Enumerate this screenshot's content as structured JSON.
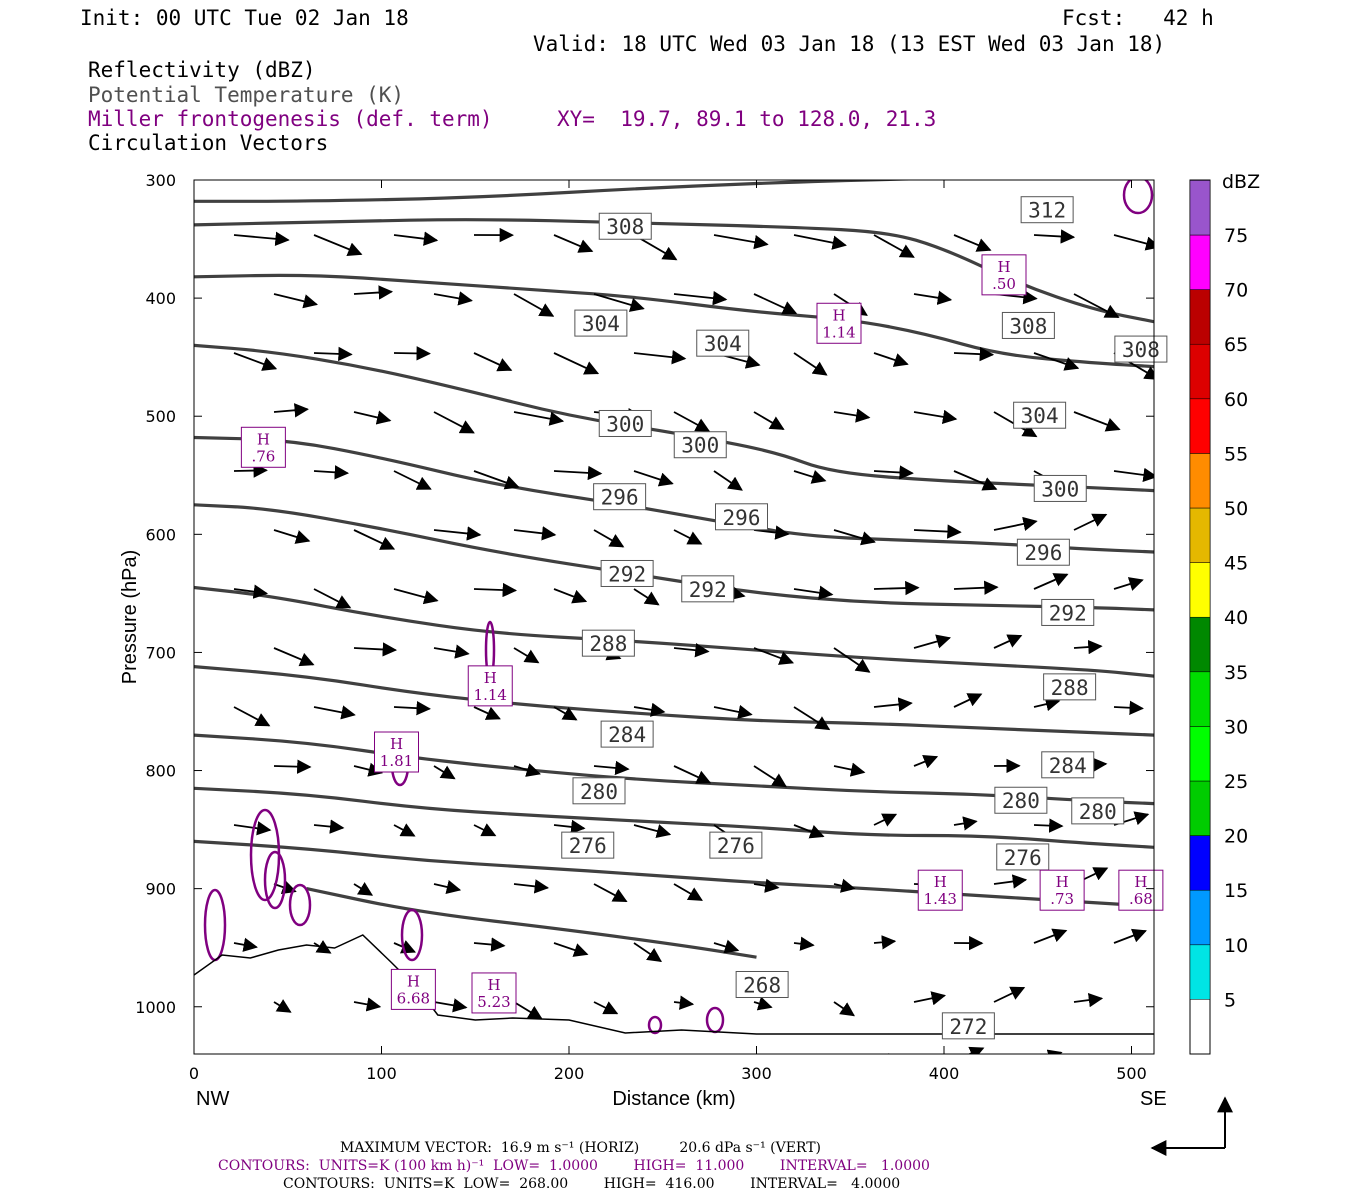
{
  "header": {
    "init": "Init: 00 UTC Tue 02 Jan 18",
    "fcst": "Fcst:   42 h",
    "valid": "Valid: 18 UTC Wed 03 Jan 18 (13 EST Wed 03 Jan 18)",
    "field1": "Reflectivity (dBZ)",
    "field2": "Potential Temperature (K)",
    "field3": "Miller frontogenesis (def. term)",
    "xy": "XY=  19.7, 89.1 to 128.0, 21.3",
    "field4": "Circulation Vectors"
  },
  "colors": {
    "theta": "#404040",
    "fronto": "#800080",
    "terrain": "#000000",
    "vectors": "#000000"
  },
  "chart_data": {
    "type": "cross-section",
    "xlabel": "Distance (km)",
    "ylabel": "Pressure (hPa)",
    "xlim": [
      0,
      512
    ],
    "ylim": [
      1040,
      300
    ],
    "x_ticks": [
      0,
      100,
      200,
      300,
      400,
      500
    ],
    "y_ticks": [
      300,
      400,
      500,
      600,
      700,
      800,
      900,
      1000
    ],
    "left_end": "NW",
    "right_end": "SE",
    "theta_contours": [
      {
        "label": "312",
        "points": [
          [
            0,
            318
          ],
          [
            60,
            318
          ],
          [
            150,
            315
          ],
          [
            250,
            306
          ],
          [
            350,
            300
          ],
          [
            420,
            298
          ],
          [
            512,
            296
          ]
        ],
        "labels": [
          [
            455,
            326
          ]
        ]
      },
      {
        "label": "308",
        "points": [
          [
            0,
            338
          ],
          [
            80,
            335
          ],
          [
            150,
            333
          ],
          [
            230,
            336
          ],
          [
            320,
            340
          ],
          [
            370,
            344
          ],
          [
            400,
            358
          ],
          [
            440,
            388
          ],
          [
            480,
            410
          ],
          [
            512,
            420
          ]
        ],
        "labels": [
          [
            230,
            340
          ],
          [
            445,
            424
          ],
          [
            505,
            444
          ]
        ]
      },
      {
        "label": "304",
        "points": [
          [
            0,
            382
          ],
          [
            60,
            380
          ],
          [
            120,
            386
          ],
          [
            180,
            393
          ],
          [
            230,
            398
          ],
          [
            300,
            412
          ],
          [
            350,
            418
          ],
          [
            390,
            430
          ],
          [
            430,
            448
          ],
          [
            480,
            455
          ],
          [
            512,
            458
          ]
        ],
        "labels": [
          [
            217,
            422
          ],
          [
            282,
            439
          ],
          [
            451,
            500
          ]
        ]
      },
      {
        "label": "300",
        "points": [
          [
            0,
            440
          ],
          [
            40,
            445
          ],
          [
            90,
            458
          ],
          [
            140,
            476
          ],
          [
            200,
            500
          ],
          [
            260,
            515
          ],
          [
            310,
            530
          ],
          [
            340,
            548
          ],
          [
            400,
            555
          ],
          [
            460,
            559
          ],
          [
            512,
            563
          ]
        ],
        "labels": [
          [
            230,
            507
          ],
          [
            270,
            525
          ],
          [
            462,
            562
          ]
        ]
      },
      {
        "label": "296",
        "points": [
          [
            0,
            518
          ],
          [
            50,
            520
          ],
          [
            100,
            535
          ],
          [
            160,
            558
          ],
          [
            230,
            575
          ],
          [
            290,
            592
          ],
          [
            330,
            602
          ],
          [
            380,
            605
          ],
          [
            430,
            608
          ],
          [
            470,
            612
          ],
          [
            512,
            615
          ]
        ],
        "labels": [
          [
            227,
            569
          ],
          [
            292,
            586
          ],
          [
            453,
            616
          ]
        ]
      },
      {
        "label": "292",
        "points": [
          [
            0,
            575
          ],
          [
            40,
            578
          ],
          [
            100,
            595
          ],
          [
            160,
            615
          ],
          [
            240,
            635
          ],
          [
            300,
            650
          ],
          [
            360,
            658
          ],
          [
            420,
            660
          ],
          [
            480,
            662
          ],
          [
            512,
            664
          ]
        ],
        "labels": [
          [
            231,
            634
          ],
          [
            274,
            647
          ],
          [
            466,
            667
          ]
        ]
      },
      {
        "label": "288",
        "points": [
          [
            0,
            645
          ],
          [
            40,
            652
          ],
          [
            100,
            670
          ],
          [
            160,
            684
          ],
          [
            230,
            690
          ],
          [
            300,
            698
          ],
          [
            360,
            705
          ],
          [
            420,
            710
          ],
          [
            480,
            715
          ],
          [
            512,
            720
          ]
        ],
        "labels": [
          [
            221,
            693
          ],
          [
            467,
            730
          ]
        ]
      },
      {
        "label": "284",
        "points": [
          [
            0,
            712
          ],
          [
            60,
            720
          ],
          [
            120,
            735
          ],
          [
            180,
            745
          ],
          [
            240,
            752
          ],
          [
            300,
            758
          ],
          [
            360,
            760
          ],
          [
            420,
            764
          ],
          [
            480,
            768
          ],
          [
            512,
            770
          ]
        ],
        "labels": [
          [
            231,
            770
          ],
          [
            466,
            796
          ]
        ]
      },
      {
        "label": "280",
        "points": [
          [
            0,
            770
          ],
          [
            60,
            776
          ],
          [
            120,
            790
          ],
          [
            180,
            800
          ],
          [
            240,
            808
          ],
          [
            300,
            813
          ],
          [
            360,
            818
          ],
          [
            420,
            820
          ],
          [
            480,
            826
          ],
          [
            512,
            828
          ]
        ],
        "labels": [
          [
            216,
            818
          ],
          [
            441,
            826
          ],
          [
            482,
            835
          ]
        ]
      },
      {
        "label": "276",
        "points": [
          [
            0,
            815
          ],
          [
            60,
            820
          ],
          [
            120,
            832
          ],
          [
            180,
            838
          ],
          [
            240,
            843
          ],
          [
            300,
            848
          ],
          [
            360,
            855
          ],
          [
            420,
            855
          ],
          [
            480,
            862
          ],
          [
            512,
            865
          ]
        ],
        "labels": [
          [
            210,
            864
          ],
          [
            289,
            864
          ],
          [
            442,
            874
          ]
        ]
      },
      {
        "label": "272",
        "points": [
          [
            0,
            860
          ],
          [
            60,
            866
          ],
          [
            120,
            876
          ],
          [
            180,
            882
          ],
          [
            240,
            888
          ],
          [
            300,
            895
          ],
          [
            360,
            900
          ],
          [
            410,
            905
          ],
          [
            460,
            910
          ],
          [
            512,
            915
          ]
        ],
        "labels": [
          [
            413,
            1017
          ]
        ]
      },
      {
        "label": "268",
        "points": [
          [
            60,
            900
          ],
          [
            120,
            920
          ],
          [
            200,
            935
          ],
          [
            260,
            948
          ],
          [
            300,
            958
          ]
        ],
        "labels": [
          [
            303,
            982
          ]
        ]
      }
    ],
    "fronto_maxima": [
      {
        "x": 37,
        "p": 528,
        "value": ".76"
      },
      {
        "x": 158,
        "p": 730,
        "value": "1.14"
      },
      {
        "x": 108,
        "p": 786,
        "value": "1.81"
      },
      {
        "x": 344,
        "p": 423,
        "value": "1.14"
      },
      {
        "x": 432,
        "p": 382,
        "value": ".50"
      },
      {
        "x": 398,
        "p": 903,
        "value": "1.43"
      },
      {
        "x": 463,
        "p": 903,
        "value": ".73"
      },
      {
        "x": 505,
        "p": 903,
        "value": ".68"
      },
      {
        "x": 117,
        "p": 987,
        "value": "6.68"
      },
      {
        "x": 160,
        "p": 990,
        "value": "5.23"
      }
    ],
    "colorbar": {
      "title": "dBZ",
      "labels": [
        "5",
        "10",
        "15",
        "20",
        "25",
        "30",
        "35",
        "40",
        "45",
        "50",
        "55",
        "60",
        "65",
        "70",
        "75"
      ],
      "colors": [
        "#00e5e5",
        "#0099ff",
        "#0000ff",
        "#00cc00",
        "#00ff00",
        "#00dd00",
        "#008800",
        "#ffff00",
        "#e5b800",
        "#ff8c00",
        "#ff0000",
        "#dd0000",
        "#bb0000",
        "#ff00ff",
        "#9955cc"
      ]
    }
  },
  "footer": {
    "line1": "MAXIMUM VECTOR:  16.9 m s⁻¹ (HORIZ)         20.6 dPa s⁻¹ (VERT)",
    "line2": "CONTOURS:  UNITS=K (100 km h)⁻¹  LOW=  1.0000        HIGH=  11.000        INTERVAL=   1.0000",
    "line3": "CONTOURS:  UNITS=K  LOW=  268.00        HIGH=  416.00        INTERVAL=   4.0000"
  }
}
